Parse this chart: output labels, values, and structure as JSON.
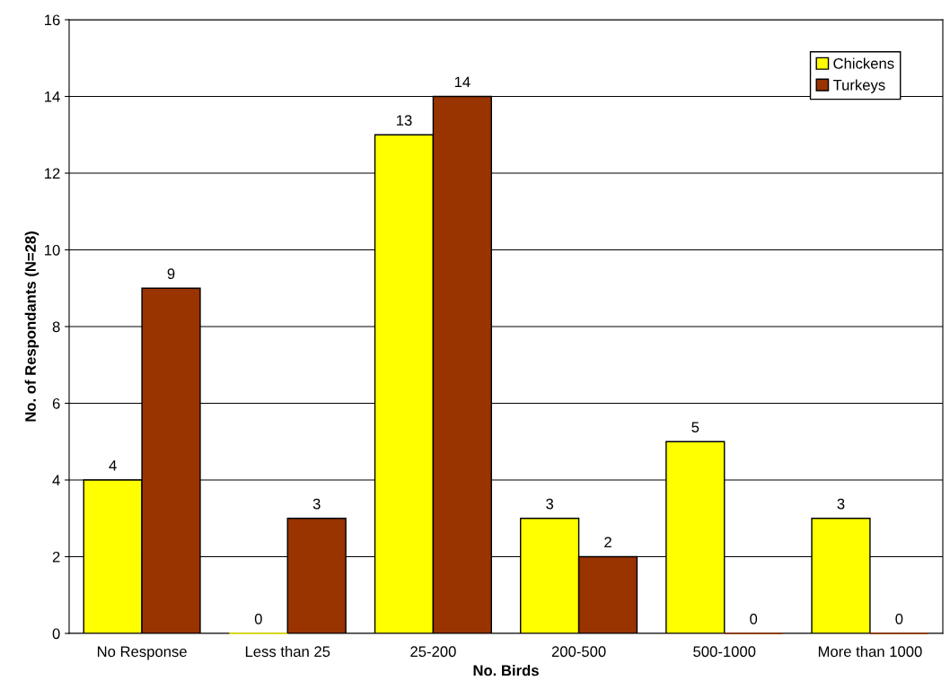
{
  "chart_data": {
    "type": "bar",
    "xlabel": "No. Birds",
    "ylabel": "No. of Respondants (N=28)",
    "categories": [
      "No Response",
      "Less than 25",
      "25-200",
      "200-500",
      "500-1000",
      "More than 1000"
    ],
    "series": [
      {
        "name": "Chickens",
        "color": "#ffff00",
        "values": [
          4,
          0,
          13,
          3,
          5,
          3
        ]
      },
      {
        "name": "Turkeys",
        "color": "#993300",
        "values": [
          9,
          3,
          14,
          2,
          0,
          0
        ]
      }
    ],
    "ylim": [
      0,
      16
    ],
    "yticks": [
      0,
      2,
      4,
      6,
      8,
      10,
      12,
      14,
      16
    ],
    "grid": "y",
    "legend": "top right",
    "data_labels": true
  }
}
